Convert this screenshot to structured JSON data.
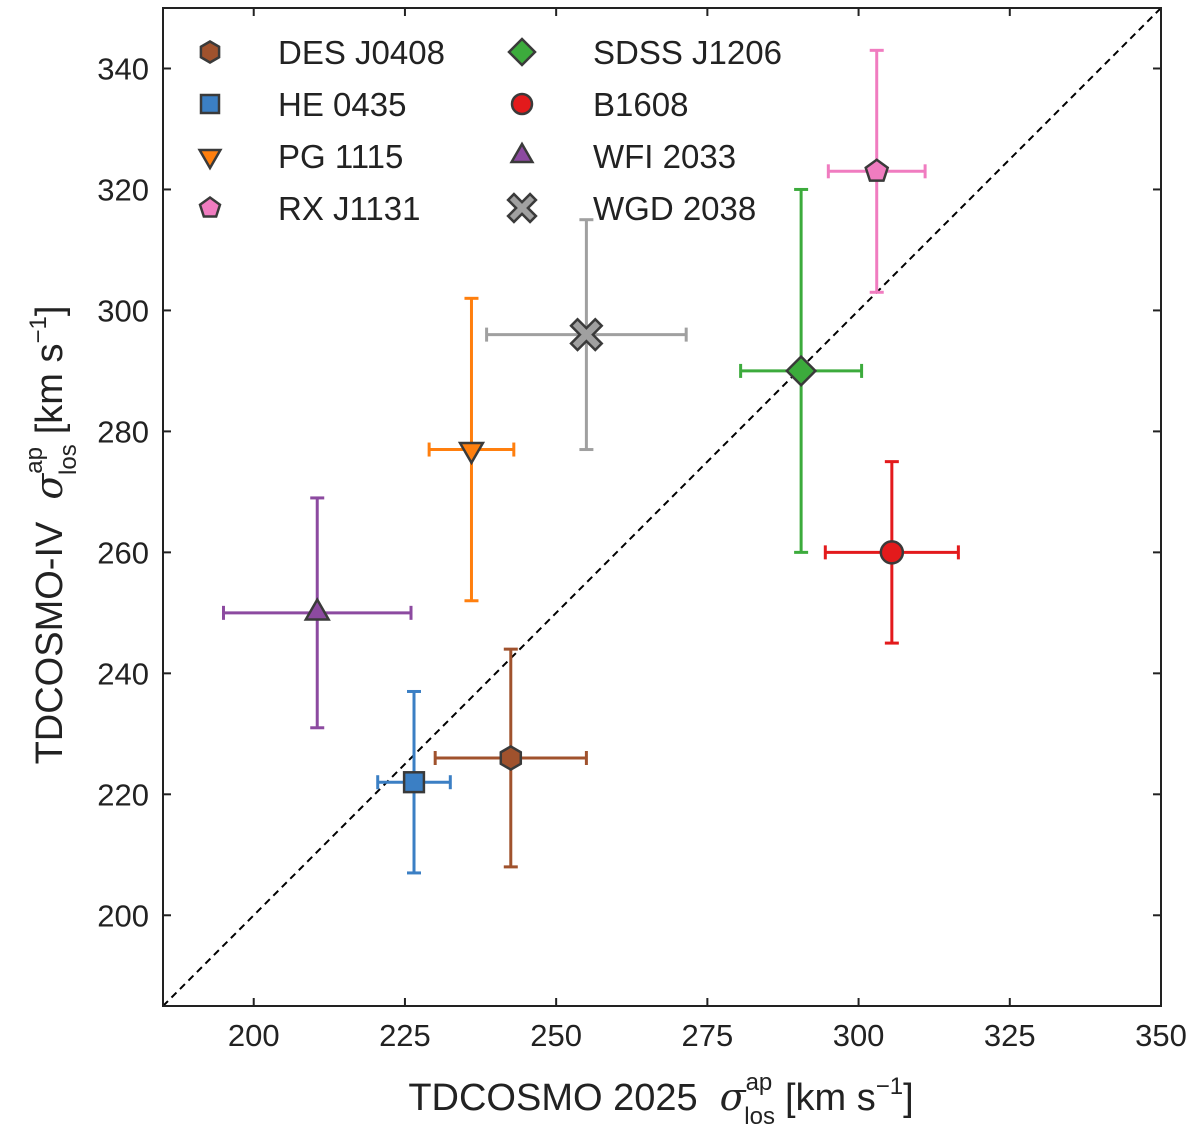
{
  "chart_data": {
    "type": "scatter",
    "title": "",
    "xlabel": {
      "main": "TDCOSMO 2025",
      "symbol": "σ",
      "sup": "ap",
      "sub": "los",
      "unit_open": "[km s",
      "unit_exp": "−1",
      "unit_close": "]"
    },
    "ylabel": {
      "main": "TDCOSMO-IV",
      "symbol": "σ",
      "sup": "ap",
      "sub": "los",
      "unit_open": "[km s",
      "unit_exp": "−1",
      "unit_close": "]"
    },
    "xlim": [
      185,
      350
    ],
    "ylim": [
      185,
      350
    ],
    "xticks": [
      200,
      225,
      250,
      275,
      300,
      325,
      350
    ],
    "yticks": [
      200,
      220,
      240,
      260,
      280,
      300,
      320,
      340
    ],
    "one_to_one_line": true,
    "legend_position": "top-left",
    "series": [
      {
        "name": "DES J0408",
        "marker": "hexagon",
        "color": "#a0522d",
        "x": 242.5,
        "y": 226,
        "xerr": [
          12.5,
          12.5
        ],
        "yerr": [
          18,
          18
        ]
      },
      {
        "name": "HE 0435",
        "marker": "square",
        "color": "#3b7fc4",
        "x": 226.5,
        "y": 222,
        "xerr": [
          6,
          6
        ],
        "yerr": [
          15,
          15
        ]
      },
      {
        "name": "PG 1115",
        "marker": "triangle-down",
        "color": "#ff7f0e",
        "x": 236,
        "y": 277,
        "xerr": [
          7,
          7
        ],
        "yerr": [
          25,
          25
        ]
      },
      {
        "name": "RX J1131",
        "marker": "pentagon",
        "color": "#f07cc0",
        "x": 303,
        "y": 323,
        "xerr": [
          8,
          8
        ],
        "yerr": [
          20,
          20
        ]
      },
      {
        "name": "SDSS J1206",
        "marker": "diamond",
        "color": "#3cab3c",
        "x": 290.5,
        "y": 290,
        "xerr": [
          10,
          10
        ],
        "yerr": [
          30,
          30
        ]
      },
      {
        "name": "B1608",
        "marker": "circle",
        "color": "#e31a1c",
        "x": 305.5,
        "y": 260,
        "xerr": [
          11,
          11
        ],
        "yerr": [
          15,
          15
        ]
      },
      {
        "name": "WFI 2033",
        "marker": "triangle-up",
        "color": "#8c4aa0",
        "x": 210.5,
        "y": 250,
        "xerr": [
          15.5,
          15.5
        ],
        "yerr": [
          19,
          19
        ]
      },
      {
        "name": "WGD 2038",
        "marker": "x",
        "color": "#a0a0a0",
        "x": 255,
        "y": 296,
        "xerr": [
          16.5,
          16.5
        ],
        "yerr": [
          19,
          19
        ]
      }
    ]
  }
}
